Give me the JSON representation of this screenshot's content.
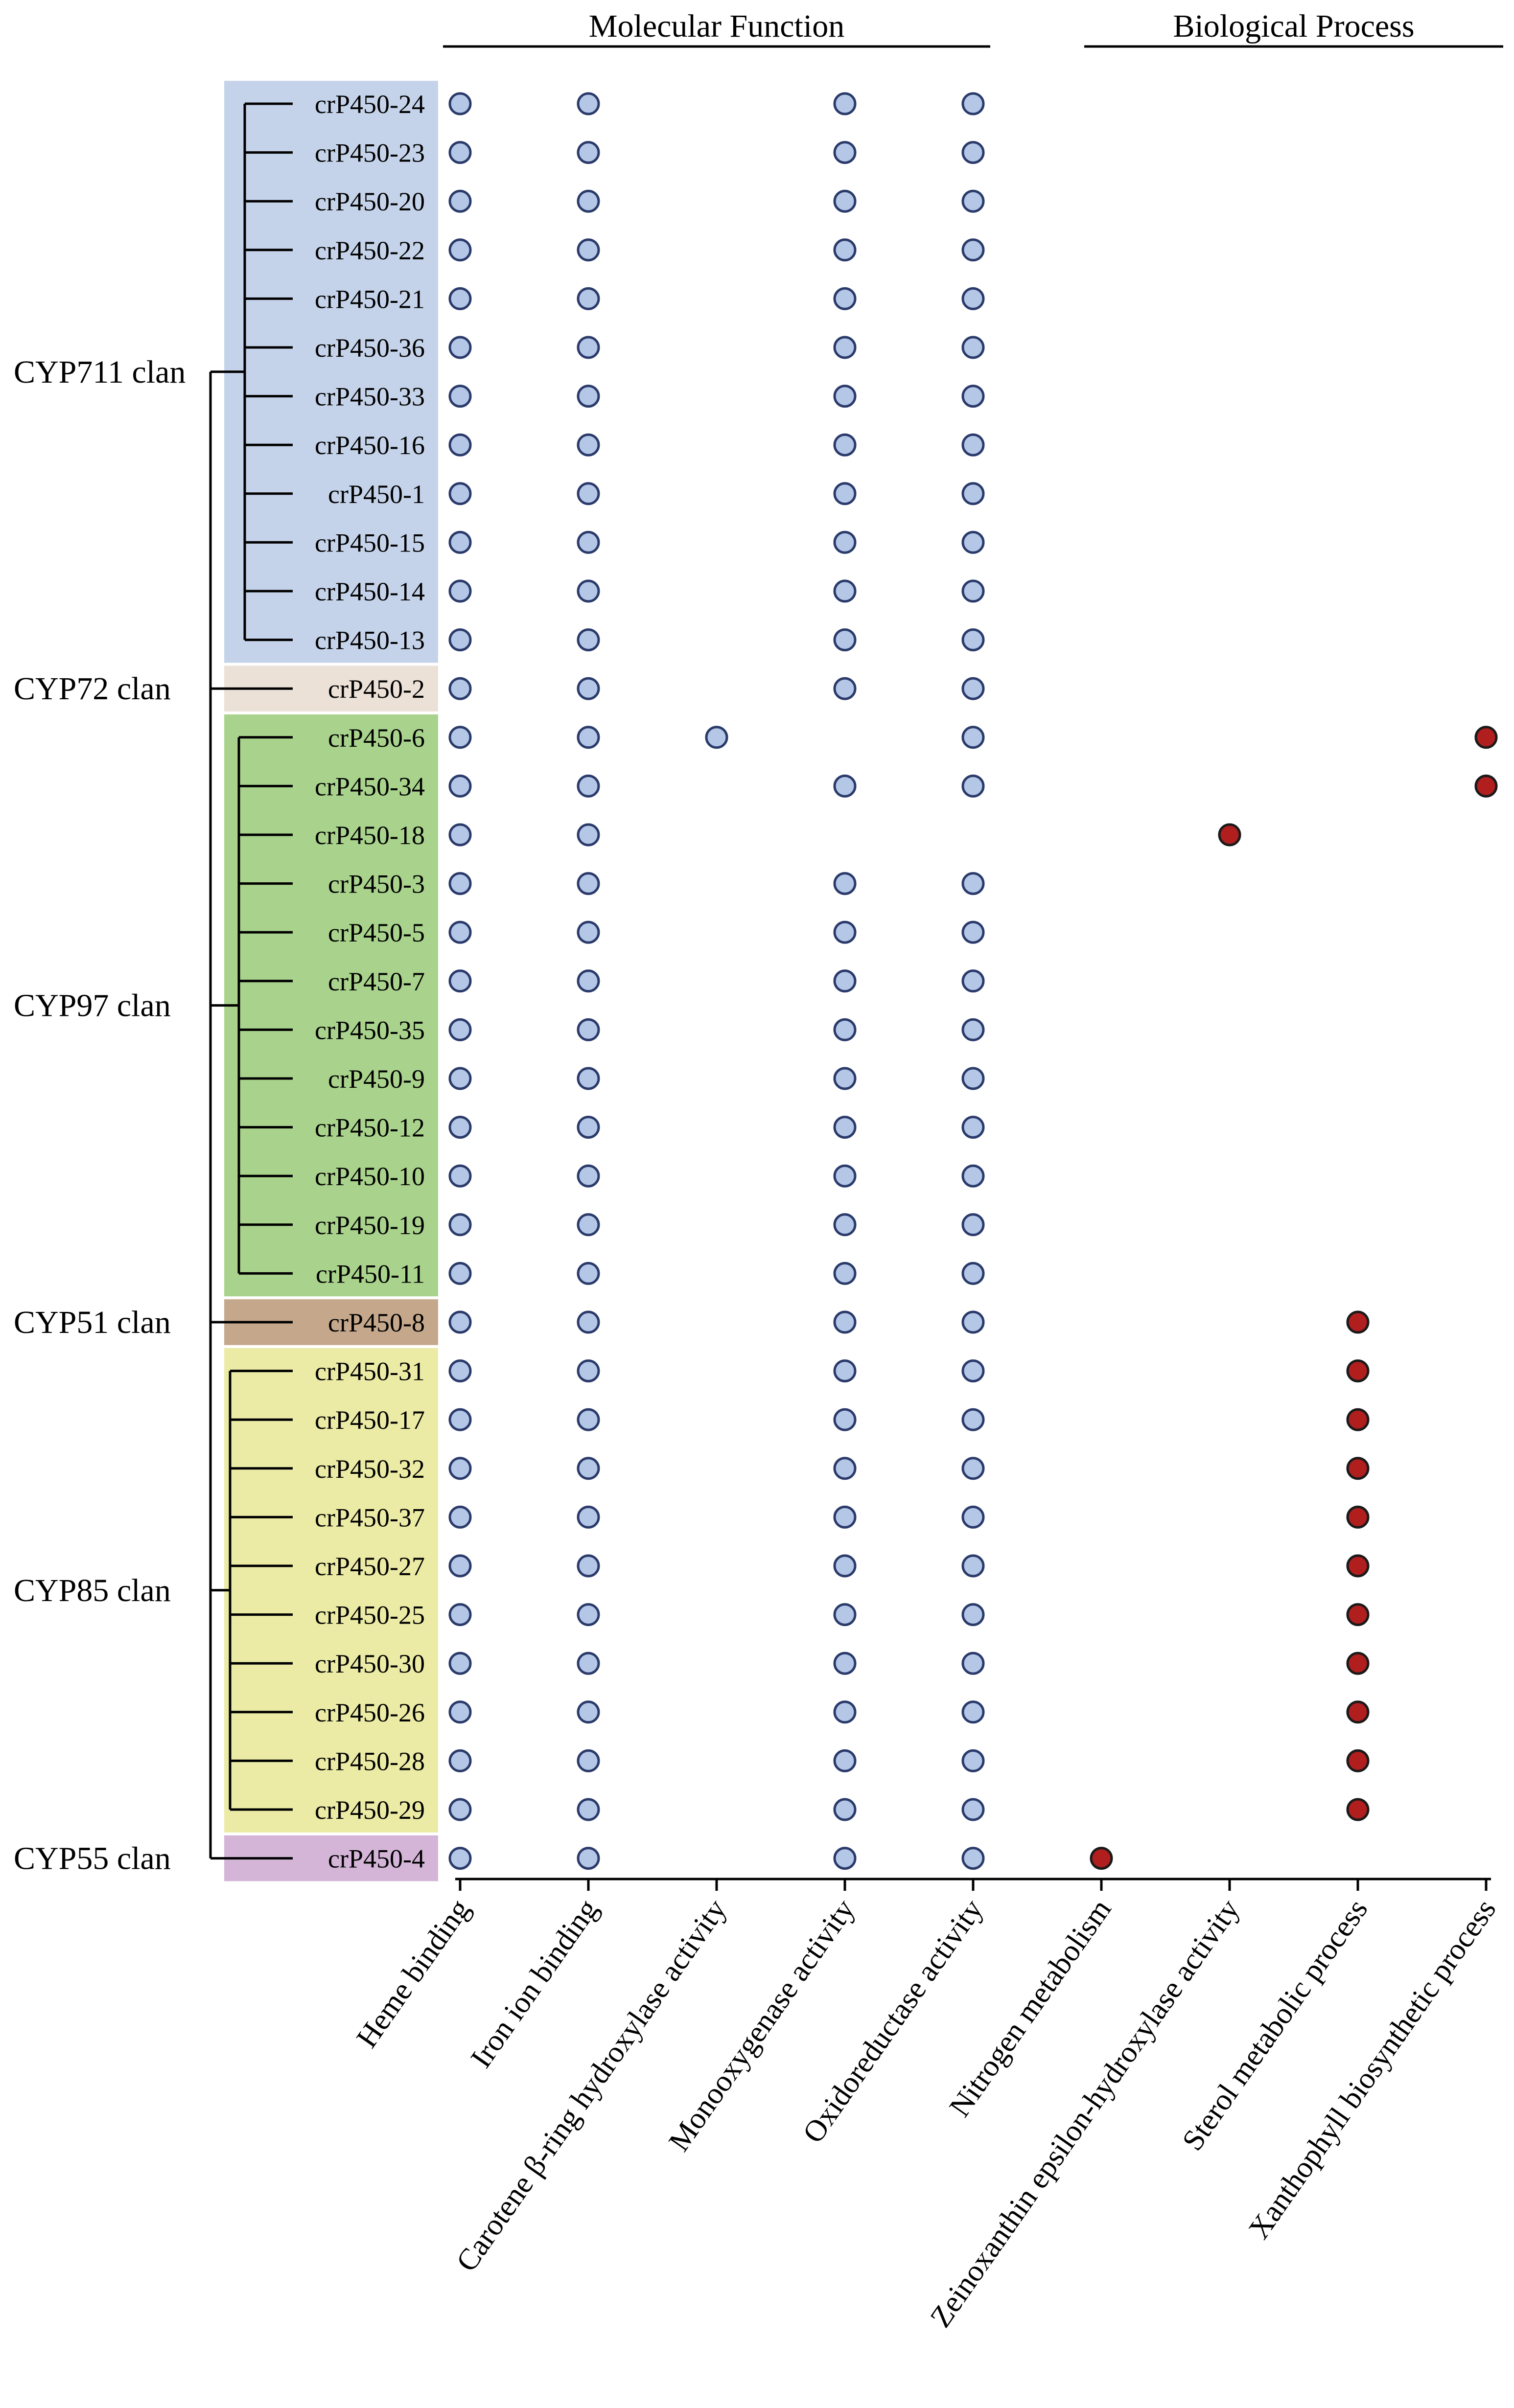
{
  "chart_data": {
    "type": "dot-matrix",
    "header_categories": [
      {
        "label": "Molecular Function",
        "columns": [
          0,
          1,
          2,
          3,
          4
        ]
      },
      {
        "label": "Biological Process",
        "columns": [
          5,
          6,
          7,
          8
        ]
      }
    ],
    "columns": [
      "Heme binding",
      "Iron ion binding",
      "Carotene β-ring hydroxylase activity",
      "Monooxygenase activity",
      "Oxidoreductase activity",
      "Nitrogen metabolism",
      "Zeinoxanthin epsilon-hydroxylase activity",
      "Sterol metabolic process",
      "Xanthophyll biosynthetic process"
    ],
    "clans": [
      {
        "name": "CYP711 clan",
        "color": "#c5d3ea",
        "genes": [
          "crP450-24",
          "crP450-23",
          "crP450-20",
          "crP450-22",
          "crP450-21",
          "crP450-36",
          "crP450-33",
          "crP450-16",
          "crP450-1",
          "crP450-15",
          "crP450-14",
          "crP450-13"
        ]
      },
      {
        "name": "CYP72 clan",
        "color": "#ebe1d7",
        "genes": [
          "crP450-2"
        ]
      },
      {
        "name": "CYP97 clan",
        "color": "#a9d38c",
        "genes": [
          "crP450-6",
          "crP450-34",
          "crP450-18",
          "crP450-3",
          "crP450-5",
          "crP450-7",
          "crP450-35",
          "crP450-9",
          "crP450-12",
          "crP450-10",
          "crP450-19",
          "crP450-11"
        ]
      },
      {
        "name": "CYP51 clan",
        "color": "#c5a88b",
        "genes": [
          "crP450-8"
        ]
      },
      {
        "name": "CYP85 clan",
        "color": "#ebeba5",
        "genes": [
          "crP450-31",
          "crP450-17",
          "crP450-32",
          "crP450-37",
          "crP450-27",
          "crP450-25",
          "crP450-30",
          "crP450-26",
          "crP450-28",
          "crP450-29"
        ]
      },
      {
        "name": "CYP55 clan",
        "color": "#d4b5d8",
        "genes": [
          "crP450-4"
        ]
      }
    ],
    "rows": [
      {
        "gene": "crP450-24",
        "present": [
          0,
          1,
          3,
          4
        ],
        "bp": []
      },
      {
        "gene": "crP450-23",
        "present": [
          0,
          1,
          3,
          4
        ],
        "bp": []
      },
      {
        "gene": "crP450-20",
        "present": [
          0,
          1,
          3,
          4
        ],
        "bp": []
      },
      {
        "gene": "crP450-22",
        "present": [
          0,
          1,
          3,
          4
        ],
        "bp": []
      },
      {
        "gene": "crP450-21",
        "present": [
          0,
          1,
          3,
          4
        ],
        "bp": []
      },
      {
        "gene": "crP450-36",
        "present": [
          0,
          1,
          3,
          4
        ],
        "bp": []
      },
      {
        "gene": "crP450-33",
        "present": [
          0,
          1,
          3,
          4
        ],
        "bp": []
      },
      {
        "gene": "crP450-16",
        "present": [
          0,
          1,
          3,
          4
        ],
        "bp": []
      },
      {
        "gene": "crP450-1",
        "present": [
          0,
          1,
          3,
          4
        ],
        "bp": []
      },
      {
        "gene": "crP450-15",
        "present": [
          0,
          1,
          3,
          4
        ],
        "bp": []
      },
      {
        "gene": "crP450-14",
        "present": [
          0,
          1,
          3,
          4
        ],
        "bp": []
      },
      {
        "gene": "crP450-13",
        "present": [
          0,
          1,
          3,
          4
        ],
        "bp": []
      },
      {
        "gene": "crP450-2",
        "present": [
          0,
          1,
          3,
          4
        ],
        "bp": []
      },
      {
        "gene": "crP450-6",
        "present": [
          0,
          1,
          2,
          4
        ],
        "bp": [
          8
        ]
      },
      {
        "gene": "crP450-34",
        "present": [
          0,
          1,
          3,
          4
        ],
        "bp": [
          8
        ]
      },
      {
        "gene": "crP450-18",
        "present": [
          0,
          1
        ],
        "bp": [
          6
        ]
      },
      {
        "gene": "crP450-3",
        "present": [
          0,
          1,
          3,
          4
        ],
        "bp": []
      },
      {
        "gene": "crP450-5",
        "present": [
          0,
          1,
          3,
          4
        ],
        "bp": []
      },
      {
        "gene": "crP450-7",
        "present": [
          0,
          1,
          3,
          4
        ],
        "bp": []
      },
      {
        "gene": "crP450-35",
        "present": [
          0,
          1,
          3,
          4
        ],
        "bp": []
      },
      {
        "gene": "crP450-9",
        "present": [
          0,
          1,
          3,
          4
        ],
        "bp": []
      },
      {
        "gene": "crP450-12",
        "present": [
          0,
          1,
          3,
          4
        ],
        "bp": []
      },
      {
        "gene": "crP450-10",
        "present": [
          0,
          1,
          3,
          4
        ],
        "bp": []
      },
      {
        "gene": "crP450-19",
        "present": [
          0,
          1,
          3,
          4
        ],
        "bp": []
      },
      {
        "gene": "crP450-11",
        "present": [
          0,
          1,
          3,
          4
        ],
        "bp": []
      },
      {
        "gene": "crP450-8",
        "present": [
          0,
          1,
          3,
          4
        ],
        "bp": [
          7
        ]
      },
      {
        "gene": "crP450-31",
        "present": [
          0,
          1,
          3,
          4
        ],
        "bp": [
          7
        ]
      },
      {
        "gene": "crP450-17",
        "present": [
          0,
          1,
          3,
          4
        ],
        "bp": [
          7
        ]
      },
      {
        "gene": "crP450-32",
        "present": [
          0,
          1,
          3,
          4
        ],
        "bp": [
          7
        ]
      },
      {
        "gene": "crP450-37",
        "present": [
          0,
          1,
          3,
          4
        ],
        "bp": [
          7
        ]
      },
      {
        "gene": "crP450-27",
        "present": [
          0,
          1,
          3,
          4
        ],
        "bp": [
          7
        ]
      },
      {
        "gene": "crP450-25",
        "present": [
          0,
          1,
          3,
          4
        ],
        "bp": [
          7
        ]
      },
      {
        "gene": "crP450-30",
        "present": [
          0,
          1,
          3,
          4
        ],
        "bp": [
          7
        ]
      },
      {
        "gene": "crP450-26",
        "present": [
          0,
          1,
          3,
          4
        ],
        "bp": [
          7
        ]
      },
      {
        "gene": "crP450-28",
        "present": [
          0,
          1,
          3,
          4
        ],
        "bp": [
          7
        ]
      },
      {
        "gene": "crP450-29",
        "present": [
          0,
          1,
          3,
          4
        ],
        "bp": [
          7
        ]
      },
      {
        "gene": "crP450-4",
        "present": [
          0,
          1,
          3,
          4
        ],
        "bp": [
          5
        ]
      }
    ],
    "dot_colors": {
      "molecular_function": "#b4c7e7",
      "biological_process": "#b01e1e",
      "outline": "#2a3a6a"
    },
    "legend": "none"
  }
}
